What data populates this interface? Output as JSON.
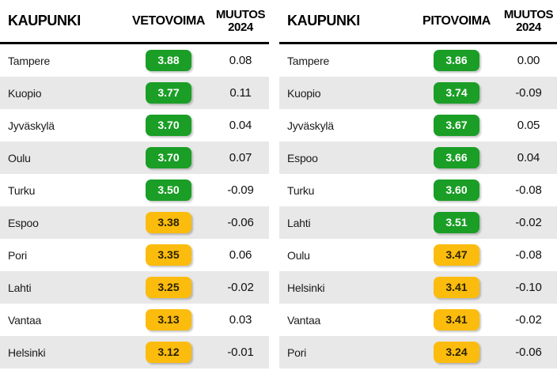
{
  "colors": {
    "green": "#1a9e26",
    "yellow": "#fbbc0e",
    "green_text": "#ffffff",
    "yellow_text": "#2b2200",
    "row_alt": "#e8e8e8",
    "header_rule": "#000000"
  },
  "tables": [
    {
      "id": "vetovoima",
      "headers": {
        "city": "KAUPUNKI",
        "score": "VETOVOIMA",
        "change_line1": "MUUTOS",
        "change_line2": "2024"
      },
      "rows": [
        {
          "city": "Tampere",
          "score": "3.88",
          "level": "green",
          "change": "0.08"
        },
        {
          "city": "Kuopio",
          "score": "3.77",
          "level": "green",
          "change": "0.11"
        },
        {
          "city": "Jyväskylä",
          "score": "3.70",
          "level": "green",
          "change": "0.04"
        },
        {
          "city": "Oulu",
          "score": "3.70",
          "level": "green",
          "change": "0.07"
        },
        {
          "city": "Turku",
          "score": "3.50",
          "level": "green",
          "change": "-0.09"
        },
        {
          "city": "Espoo",
          "score": "3.38",
          "level": "yellow",
          "change": "-0.06"
        },
        {
          "city": "Pori",
          "score": "3.35",
          "level": "yellow",
          "change": "0.06"
        },
        {
          "city": "Lahti",
          "score": "3.25",
          "level": "yellow",
          "change": "-0.02"
        },
        {
          "city": "Vantaa",
          "score": "3.13",
          "level": "yellow",
          "change": "0.03"
        },
        {
          "city": "Helsinki",
          "score": "3.12",
          "level": "yellow",
          "change": "-0.01"
        }
      ]
    },
    {
      "id": "pitovoima",
      "headers": {
        "city": "KAUPUNKI",
        "score": "PITOVOIMA",
        "change_line1": "MUUTOS",
        "change_line2": "2024"
      },
      "rows": [
        {
          "city": "Tampere",
          "score": "3.86",
          "level": "green",
          "change": "0.00"
        },
        {
          "city": "Kuopio",
          "score": "3.74",
          "level": "green",
          "change": "-0.09"
        },
        {
          "city": "Jyväskylä",
          "score": "3.67",
          "level": "green",
          "change": "0.05"
        },
        {
          "city": "Espoo",
          "score": "3.66",
          "level": "green",
          "change": "0.04"
        },
        {
          "city": "Turku",
          "score": "3.60",
          "level": "green",
          "change": "-0.08"
        },
        {
          "city": "Lahti",
          "score": "3.51",
          "level": "green",
          "change": "-0.02"
        },
        {
          "city": "Oulu",
          "score": "3.47",
          "level": "yellow",
          "change": "-0.08"
        },
        {
          "city": "Helsinki",
          "score": "3.41",
          "level": "yellow",
          "change": "-0.10"
        },
        {
          "city": "Vantaa",
          "score": "3.41",
          "level": "yellow",
          "change": "-0.02"
        },
        {
          "city": "Pori",
          "score": "3.24",
          "level": "yellow",
          "change": "-0.06"
        }
      ]
    }
  ],
  "chart_data": [
    {
      "type": "table",
      "title": "VETOVOIMA",
      "columns": [
        "KAUPUNKI",
        "VETOVOIMA",
        "MUUTOS 2024"
      ],
      "rows": [
        [
          "Tampere",
          3.88,
          0.08
        ],
        [
          "Kuopio",
          3.77,
          0.11
        ],
        [
          "Jyväskylä",
          3.7,
          0.04
        ],
        [
          "Oulu",
          3.7,
          0.07
        ],
        [
          "Turku",
          3.5,
          -0.09
        ],
        [
          "Espoo",
          3.38,
          -0.06
        ],
        [
          "Pori",
          3.35,
          0.06
        ],
        [
          "Lahti",
          3.25,
          -0.02
        ],
        [
          "Vantaa",
          3.13,
          0.03
        ],
        [
          "Helsinki",
          3.12,
          -0.01
        ]
      ],
      "color_coding": {
        "green": "score >= 3.50",
        "yellow": "score < 3.50"
      }
    },
    {
      "type": "table",
      "title": "PITOVOIMA",
      "columns": [
        "KAUPUNKI",
        "PITOVOIMA",
        "MUUTOS 2024"
      ],
      "rows": [
        [
          "Tampere",
          3.86,
          0.0
        ],
        [
          "Kuopio",
          3.74,
          -0.09
        ],
        [
          "Jyväskylä",
          3.67,
          0.05
        ],
        [
          "Espoo",
          3.66,
          0.04
        ],
        [
          "Turku",
          3.6,
          -0.08
        ],
        [
          "Lahti",
          3.51,
          -0.02
        ],
        [
          "Oulu",
          3.47,
          -0.08
        ],
        [
          "Helsinki",
          3.41,
          -0.1
        ],
        [
          "Vantaa",
          3.41,
          -0.02
        ],
        [
          "Pori",
          3.24,
          -0.06
        ]
      ],
      "color_coding": {
        "green": "score >= 3.50",
        "yellow": "score < 3.50"
      }
    }
  ]
}
